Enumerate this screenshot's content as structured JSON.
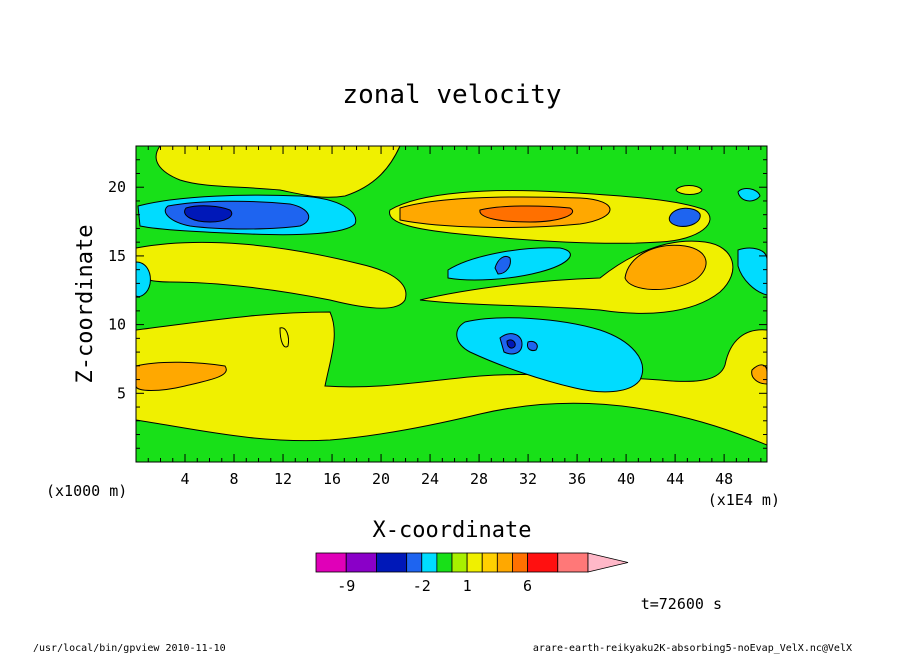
{
  "chart_data": {
    "type": "heatmap",
    "title": "zonal velocity",
    "xlabel": "X-coordinate",
    "ylabel": "Z-coordinate",
    "x_unit": "(x1E4 m)",
    "y_unit": "(x1000 m)",
    "xlim": [
      0,
      51.5
    ],
    "ylim": [
      0,
      23
    ],
    "x_ticks": [
      4,
      8,
      12,
      16,
      20,
      24,
      28,
      32,
      36,
      40,
      44,
      48
    ],
    "y_ticks": [
      5,
      10,
      15,
      20
    ],
    "x_tick_labels": [
      "4",
      "8",
      "12",
      "16",
      "20",
      "24",
      "28",
      "32",
      "36",
      "40",
      "44",
      "48"
    ],
    "y_tick_labels": [
      "5",
      "10",
      "15",
      "20"
    ],
    "colorbar": {
      "levels": [
        -15,
        -9,
        -6,
        -3,
        -2,
        -1,
        0,
        1,
        2,
        3,
        4,
        6,
        9,
        15
      ],
      "colors": [
        "#e000b8",
        "#8a00c8",
        "#0018b8",
        "#1e64f0",
        "#00dcff",
        "#18e018",
        "#a8f000",
        "#f0f000",
        "#ffd000",
        "#ffa800",
        "#ff7000",
        "#ff1010",
        "#ff7878",
        "#ffb8c8"
      ],
      "tick_labels": [
        "-9",
        "-2",
        "1",
        "6"
      ]
    },
    "regions": [
      {
        "value": -2.5,
        "color": "#00dcff",
        "x": [
          1,
          18
        ],
        "z": [
          16.5,
          19.2
        ]
      },
      {
        "value": -6,
        "color": "#1e64f0",
        "x": [
          3,
          14
        ],
        "z": [
          17,
          18.5
        ]
      },
      {
        "value": -9,
        "color": "#0018b8",
        "x": [
          5,
          9
        ],
        "z": [
          17.4,
          18.2
        ]
      },
      {
        "value": 3.5,
        "color": "#ffa800",
        "x": [
          23,
          38
        ],
        "z": [
          17,
          18.7
        ]
      },
      {
        "value": 5,
        "color": "#ff7000",
        "x": [
          28,
          36
        ],
        "z": [
          17.4,
          18.2
        ]
      },
      {
        "value": -2.5,
        "color": "#00dcff",
        "x": [
          26,
          34
        ],
        "z": [
          13.5,
          15.6
        ]
      },
      {
        "value": -2.5,
        "color": "#00dcff",
        "x": [
          26,
          40
        ],
        "z": [
          5.5,
          10
        ]
      },
      {
        "value": -6,
        "color": "#1e64f0",
        "x": [
          29,
          32
        ],
        "z": [
          7.6,
          9.2
        ]
      },
      {
        "value": 3.5,
        "color": "#ffa800",
        "x": [
          40,
          46
        ],
        "z": [
          12.5,
          15.5
        ]
      },
      {
        "value": 3.5,
        "color": "#ffa800",
        "x": [
          0,
          8
        ],
        "z": [
          5,
          7
        ]
      },
      {
        "value": 1.5,
        "color": "#f0f000",
        "x": [
          0,
          51.5
        ],
        "z": [
          2,
          6.5
        ]
      },
      {
        "value": -6,
        "color": "#1e64f0",
        "x": [
          43,
          46
        ],
        "z": [
          16.8,
          17.8
        ]
      }
    ],
    "info_text": "t=72600 s",
    "footer_left": "/usr/local/bin/gpview  2010-11-10",
    "footer_right": "arare-earth-reikyaku2K-absorbing5-noEvap_VelX.nc@VelX"
  }
}
